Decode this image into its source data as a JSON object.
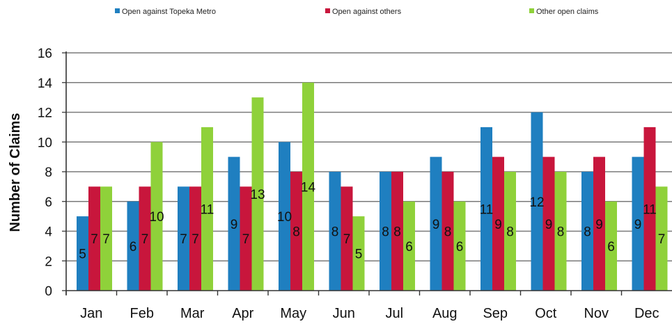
{
  "chart_data": {
    "type": "bar",
    "title": "",
    "xlabel": "",
    "ylabel": "Number of Claims",
    "ylim": [
      0,
      16
    ],
    "yticks": [
      "0",
      "2",
      "4",
      "6",
      "8",
      "10",
      "12",
      "14",
      "16"
    ],
    "grid": true,
    "legend_position": "top",
    "categories": [
      "Jan",
      "Feb",
      "Mar",
      "Apr",
      "May",
      "Jun",
      "Jul",
      "Aug",
      "Sep",
      "Oct",
      "Nov",
      "Dec"
    ],
    "series": [
      {
        "name": "Open against Topeka Metro",
        "color": "#1f7fc0",
        "values": [
          5,
          6,
          7,
          9,
          10,
          8,
          8,
          9,
          11,
          12,
          8,
          9
        ]
      },
      {
        "name": "Open against others",
        "color": "#c8163c",
        "values": [
          7,
          7,
          7,
          7,
          8,
          7,
          8,
          8,
          9,
          9,
          9,
          11
        ]
      },
      {
        "name": "Other open claims",
        "color": "#8fd13a",
        "values": [
          7,
          10,
          11,
          13,
          14,
          5,
          6,
          6,
          8,
          8,
          6,
          7
        ]
      }
    ]
  }
}
